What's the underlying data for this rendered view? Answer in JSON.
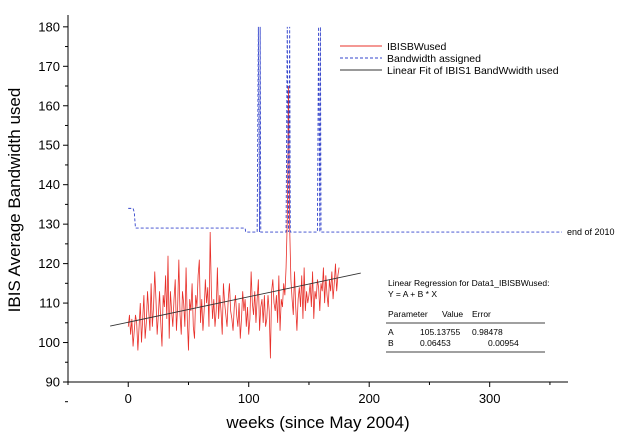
{
  "chart_data": {
    "type": "line",
    "xlabel": "weeks (since May 2004)",
    "ylabel": "IBIS Average Bandwidth used",
    "xlim": [
      -50,
      365
    ],
    "ylim": [
      90,
      183
    ],
    "xticks": [
      0,
      100,
      200,
      300
    ],
    "yticks": [
      90,
      100,
      110,
      120,
      130,
      140,
      150,
      160,
      170,
      180
    ],
    "grid": false,
    "legend_position": "top-right",
    "colors": {
      "used": "#e8302a",
      "assigned": "#3344cc",
      "fit": "#333333"
    },
    "series": [
      {
        "name": "IBISBWused",
        "style": "solid",
        "x": [
          0,
          1,
          2,
          3,
          4,
          5,
          6,
          7,
          8,
          9,
          10,
          11,
          12,
          13,
          14,
          15,
          16,
          17,
          18,
          19,
          20,
          21,
          22,
          23,
          24,
          25,
          26,
          27,
          28,
          29,
          30,
          31,
          32,
          33,
          34,
          35,
          36,
          37,
          38,
          39,
          40,
          41,
          42,
          43,
          44,
          45,
          46,
          47,
          48,
          49,
          50,
          51,
          52,
          53,
          54,
          55,
          56,
          57,
          58,
          59,
          60,
          61,
          62,
          63,
          64,
          65,
          66,
          67,
          68,
          69,
          70,
          71,
          72,
          73,
          74,
          75,
          76,
          77,
          78,
          79,
          80,
          81,
          82,
          83,
          84,
          85,
          86,
          87,
          88,
          89,
          90,
          91,
          92,
          93,
          94,
          95,
          96,
          97,
          98,
          99,
          100,
          101,
          102,
          103,
          104,
          105,
          106,
          107,
          108,
          109,
          110,
          111,
          112,
          113,
          114,
          115,
          116,
          117,
          118,
          119,
          120,
          121,
          122,
          123,
          124,
          125,
          126,
          127,
          128,
          129,
          130,
          131,
          132,
          133,
          134,
          135,
          136,
          137,
          138,
          139,
          140,
          141,
          142,
          143,
          144,
          145,
          146,
          147,
          148,
          149,
          150,
          151,
          152,
          153,
          154,
          155,
          156,
          157,
          158,
          159,
          160,
          161,
          162,
          163,
          164,
          165,
          166,
          167,
          168,
          169,
          170,
          171,
          172,
          173,
          174,
          175
        ],
        "y": [
          104,
          107,
          102,
          106,
          99,
          103,
          107,
          105,
          98,
          104,
          110,
          100,
          106,
          112,
          101,
          105,
          113,
          108,
          103,
          115,
          104,
          109,
          118,
          111,
          102,
          107,
          113,
          105,
          99,
          112,
          109,
          117,
          106,
          122,
          101,
          113,
          108,
          104,
          111,
          116,
          103,
          109,
          121,
          107,
          102,
          113,
          110,
          104,
          119,
          106,
          98,
          111,
          108,
          115,
          104,
          101,
          112,
          109,
          117,
          121,
          105,
          111,
          103,
          108,
          116,
          110,
          114,
          104,
          128,
          113,
          106,
          111,
          104,
          108,
          119,
          106,
          112,
          108,
          102,
          115,
          110,
          107,
          104,
          111,
          115,
          108,
          106,
          103,
          109,
          112,
          107,
          104,
          110,
          101,
          106,
          113,
          108,
          111,
          104,
          109,
          102,
          106,
          118,
          110,
          107,
          113,
          105,
          111,
          116,
          103,
          109,
          111,
          105,
          112,
          104,
          106,
          112,
          108,
          96,
          113,
          116,
          110,
          108,
          112,
          105,
          117,
          103,
          111,
          109,
          115,
          112,
          119,
          131,
          165,
          129,
          116,
          111,
          107,
          118,
          109,
          103,
          111,
          114,
          109,
          117,
          106,
          119,
          108,
          113,
          110,
          112,
          115,
          109,
          118,
          106,
          113,
          111,
          116,
          114,
          108,
          115,
          113,
          119,
          110,
          117,
          112,
          109,
          116,
          113,
          118,
          111,
          115,
          120,
          113,
          117,
          119
        ]
      },
      {
        "name": "Bandwidth assigned",
        "style": "dashed",
        "x": [
          0,
          4,
          5,
          6,
          7,
          97,
          97.5,
          98,
          107,
          108,
          109,
          109.5,
          110,
          111,
          131,
          132,
          133,
          134,
          134.5,
          135,
          136,
          157,
          158,
          159,
          159.5,
          160,
          161,
          360
        ],
        "y": [
          134,
          134,
          133,
          129,
          129,
          129,
          128,
          128,
          128,
          180,
          128,
          180,
          128,
          128,
          128,
          180,
          128,
          180,
          128,
          128,
          128,
          128,
          180,
          128,
          180,
          128,
          128,
          128
        ]
      },
      {
        "name": "Linear Fit of IBIS1 BandWwidth used",
        "style": "solid",
        "x": [
          -15,
          193
        ],
        "y": [
          104.17,
          117.6
        ]
      }
    ],
    "annotations": {
      "end_label": {
        "text": "end of 2010",
        "x": 360,
        "y": 128
      }
    },
    "regression_box": {
      "title": "Linear Regression for Data1_IBISBWused:",
      "equation": "Y = A + B * X",
      "headers": [
        "Parameter",
        "Value",
        "Error"
      ],
      "rows": [
        {
          "param": "A",
          "value": "105.13755",
          "error": "0.98478"
        },
        {
          "param": "B",
          "value": "0.06453",
          "error": "0.00954"
        }
      ]
    }
  }
}
